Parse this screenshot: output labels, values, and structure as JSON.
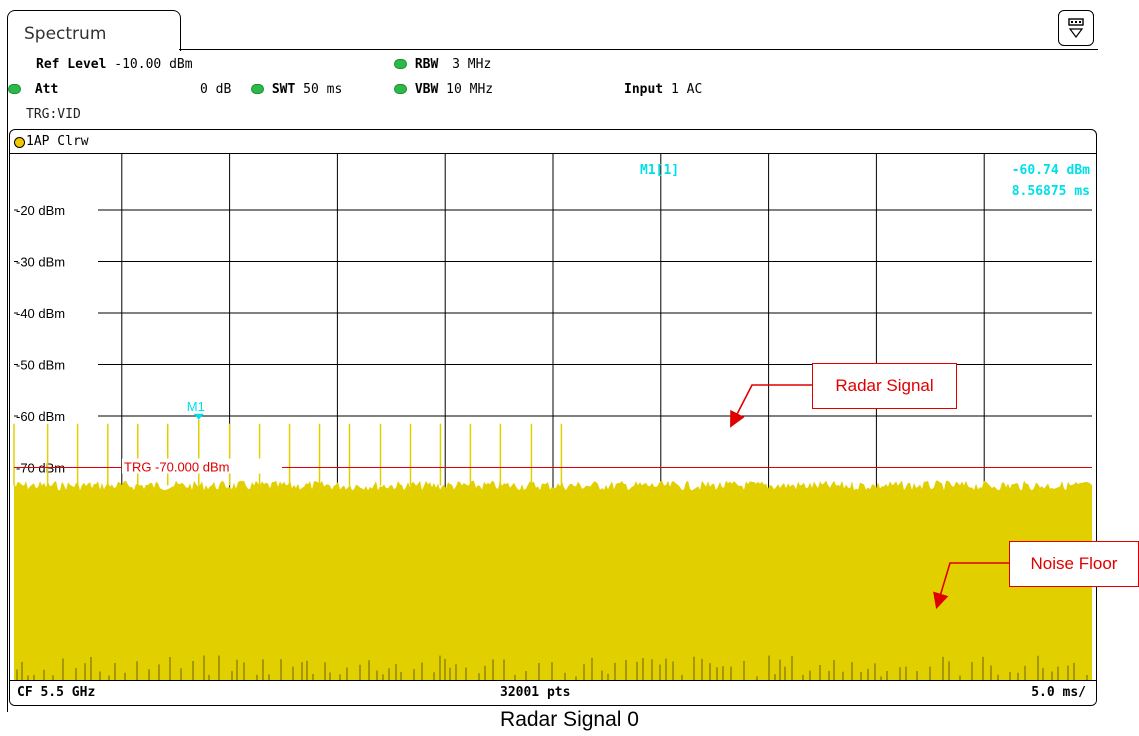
{
  "tab": {
    "label": "Spectrum"
  },
  "header": {
    "ref_level_label": "Ref Level",
    "ref_level_value": "-10.00 dBm",
    "rbw_label": "RBW",
    "rbw_value": "3 MHz",
    "att_label": "Att",
    "att_value": "0 dB",
    "swt_label": "SWT",
    "swt_value": "50 ms",
    "vbw_label": "VBW",
    "vbw_value": "10 MHz",
    "input_label": "Input",
    "input_value": "1 AC",
    "trigger": "TRG:VID"
  },
  "trace": {
    "label": "1AP Clrw"
  },
  "marker": {
    "name": "M1",
    "readout_label": "M1[1]",
    "level": "-60.74 dBm",
    "time": "8.56875 ms",
    "level_dbm": -60.74,
    "time_ms": 8.56875
  },
  "trigger_line": {
    "label": "TRG  -70.000 dBm",
    "level_dbm": -70
  },
  "footer": {
    "cf": "CF 5.5 GHz",
    "points": "32001 pts",
    "span": "5.0 ms/"
  },
  "annotations": {
    "radar": "Radar Signal",
    "noise": "Noise Floor"
  },
  "caption": "Radar Signal 0",
  "colors": {
    "trace": "#e2cf00",
    "marker": "#00e0e8",
    "trigger": "#e00000",
    "annotation": "#e00000",
    "indicator": "#2db84a"
  },
  "chart_data": {
    "type": "area",
    "y_ticks": [
      "-20 dBm",
      "-30 dBm",
      "-40 dBm",
      "-50 dBm",
      "-60 dBm",
      "-70 dBm"
    ],
    "y_tick_values": [
      -20,
      -30,
      -40,
      -50,
      -60,
      -70
    ],
    "x_divisions": 10,
    "x_ms_per_div": 5.0,
    "noise_floor_dbm": -73.5,
    "pulses": [
      {
        "t_ms": 0.0,
        "level_dbm": -61.5
      },
      {
        "t_ms": 1.56,
        "level_dbm": -61.5
      },
      {
        "t_ms": 2.95,
        "level_dbm": -61.5
      },
      {
        "t_ms": 4.35,
        "level_dbm": -61.5
      },
      {
        "t_ms": 5.74,
        "level_dbm": -61.5
      },
      {
        "t_ms": 7.13,
        "level_dbm": -61.5
      },
      {
        "t_ms": 8.57,
        "level_dbm": -60.74
      },
      {
        "t_ms": 10.0,
        "level_dbm": -61.5
      },
      {
        "t_ms": 11.39,
        "level_dbm": -61.5
      },
      {
        "t_ms": 12.78,
        "level_dbm": -61.5
      },
      {
        "t_ms": 14.17,
        "level_dbm": -61.5
      },
      {
        "t_ms": 15.56,
        "level_dbm": -61.5
      },
      {
        "t_ms": 17.0,
        "level_dbm": -61.5
      },
      {
        "t_ms": 18.39,
        "level_dbm": -61.5
      },
      {
        "t_ms": 19.78,
        "level_dbm": -61.5
      },
      {
        "t_ms": 21.17,
        "level_dbm": -61.5
      },
      {
        "t_ms": 22.56,
        "level_dbm": -61.5
      },
      {
        "t_ms": 24.0,
        "level_dbm": -61.5
      },
      {
        "t_ms": 25.39,
        "level_dbm": -61.5
      }
    ]
  }
}
